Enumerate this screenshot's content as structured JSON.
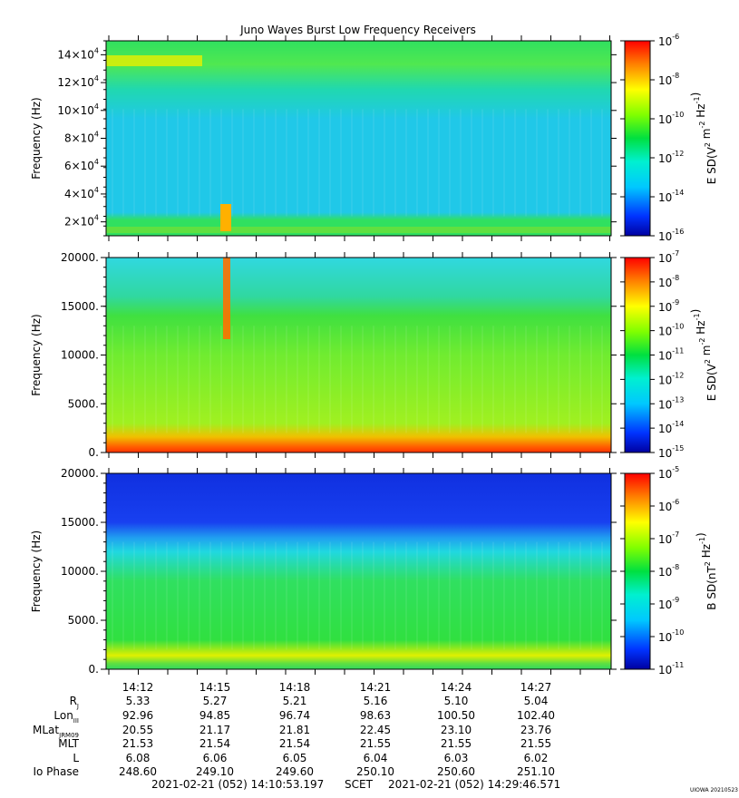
{
  "title": "Juno Waves Burst Low Frequency Receivers",
  "chart_data": [
    {
      "type": "heatmap",
      "panel": "top",
      "ylabel": "Frequency (Hz)",
      "yticks": [
        {
          "mant": "2×10",
          "exp": "4",
          "value": 20000
        },
        {
          "mant": "4×10",
          "exp": "4",
          "value": 40000
        },
        {
          "mant": "6×10",
          "exp": "4",
          "value": 60000
        },
        {
          "mant": "8×10",
          "exp": "4",
          "value": 80000
        },
        {
          "mant": "10×10",
          "exp": "4",
          "value": 100000
        },
        {
          "mant": "12×10",
          "exp": "4",
          "value": 120000
        },
        {
          "mant": "14×10",
          "exp": "4",
          "value": 140000
        }
      ],
      "ylim": [
        10000,
        150000
      ],
      "colorbar": {
        "label_pre": "E SD(V",
        "label_mid": " m",
        "label_mid2": " Hz",
        "label_post": ")",
        "exps": [
          "2",
          "-2",
          "-1"
        ],
        "scale": "log",
        "ticks": [
          {
            "base": "10",
            "exp": "-6"
          },
          {
            "base": "10",
            "exp": "-8"
          },
          {
            "base": "10",
            "exp": "-10"
          },
          {
            "base": "10",
            "exp": "-12"
          },
          {
            "base": "10",
            "exp": "-14"
          },
          {
            "base": "10",
            "exp": "-16"
          }
        ]
      }
    },
    {
      "type": "heatmap",
      "panel": "middle",
      "ylabel": "Frequency (Hz)",
      "yticks": [
        {
          "label": "20000.",
          "value": 20000
        },
        {
          "label": "15000.",
          "value": 15000
        },
        {
          "label": "10000.",
          "value": 10000
        },
        {
          "label": "5000.",
          "value": 5000
        },
        {
          "label": "0.",
          "value": 0
        }
      ],
      "ylim": [
        0,
        20000
      ],
      "colorbar": {
        "label_pre": "E SD(V",
        "label_mid": " m",
        "label_mid2": " Hz",
        "label_post": ")",
        "exps": [
          "2",
          "-2",
          "-1"
        ],
        "scale": "log",
        "ticks": [
          {
            "base": "10",
            "exp": "-7"
          },
          {
            "base": "10",
            "exp": "-8"
          },
          {
            "base": "10",
            "exp": "-9"
          },
          {
            "base": "10",
            "exp": "-10"
          },
          {
            "base": "10",
            "exp": "-11"
          },
          {
            "base": "10",
            "exp": "-12"
          },
          {
            "base": "10",
            "exp": "-13"
          },
          {
            "base": "10",
            "exp": "-14"
          },
          {
            "base": "10",
            "exp": "-15"
          }
        ]
      }
    },
    {
      "type": "heatmap",
      "panel": "bottom",
      "ylabel": "Frequency (Hz)",
      "yticks": [
        {
          "label": "20000.",
          "value": 20000
        },
        {
          "label": "15000.",
          "value": 15000
        },
        {
          "label": "10000.",
          "value": 10000
        },
        {
          "label": "5000.",
          "value": 5000
        },
        {
          "label": "0.",
          "value": 0
        }
      ],
      "ylim": [
        0,
        20000
      ],
      "colorbar": {
        "label_pre": "B SD(nT",
        "label_mid": " Hz",
        "label_post": ")",
        "exps": [
          "2",
          "-1"
        ],
        "scale": "log",
        "ticks": [
          {
            "base": "10",
            "exp": "-5"
          },
          {
            "base": "10",
            "exp": "-6"
          },
          {
            "base": "10",
            "exp": "-7"
          },
          {
            "base": "10",
            "exp": "-8"
          },
          {
            "base": "10",
            "exp": "-9"
          },
          {
            "base": "10",
            "exp": "-10"
          },
          {
            "base": "10",
            "exp": "-11"
          }
        ]
      }
    }
  ],
  "time_axis": {
    "ticks": [
      "14:12",
      "14:15",
      "14:18",
      "14:21",
      "14:24",
      "14:27"
    ],
    "start": "2021-02-21 (052) 14:10:53.197",
    "end": "2021-02-21 (052) 14:29:46.571",
    "scet_label": "SCET"
  },
  "ephemeris": [
    {
      "label": "R",
      "sub": "J",
      "values": [
        "5.33",
        "5.27",
        "5.21",
        "5.16",
        "5.10",
        "5.04"
      ]
    },
    {
      "label": "Lon",
      "sub": "III",
      "values": [
        "92.96",
        "94.85",
        "96.74",
        "98.63",
        "100.50",
        "102.40"
      ]
    },
    {
      "label": "MLat",
      "sub": "JRM09",
      "values": [
        "20.55",
        "21.17",
        "21.81",
        "22.45",
        "23.10",
        "23.76"
      ]
    },
    {
      "label": "MLT",
      "sub": "",
      "values": [
        "21.53",
        "21.54",
        "21.54",
        "21.55",
        "21.55",
        "21.55"
      ]
    },
    {
      "label": "L",
      "sub": "",
      "values": [
        "6.08",
        "6.06",
        "6.05",
        "6.04",
        "6.03",
        "6.02"
      ]
    },
    {
      "label": "Io Phase",
      "sub": "",
      "values": [
        "248.60",
        "249.10",
        "249.60",
        "250.10",
        "250.60",
        "251.10"
      ]
    }
  ],
  "credit": "UIOWA 20210523"
}
